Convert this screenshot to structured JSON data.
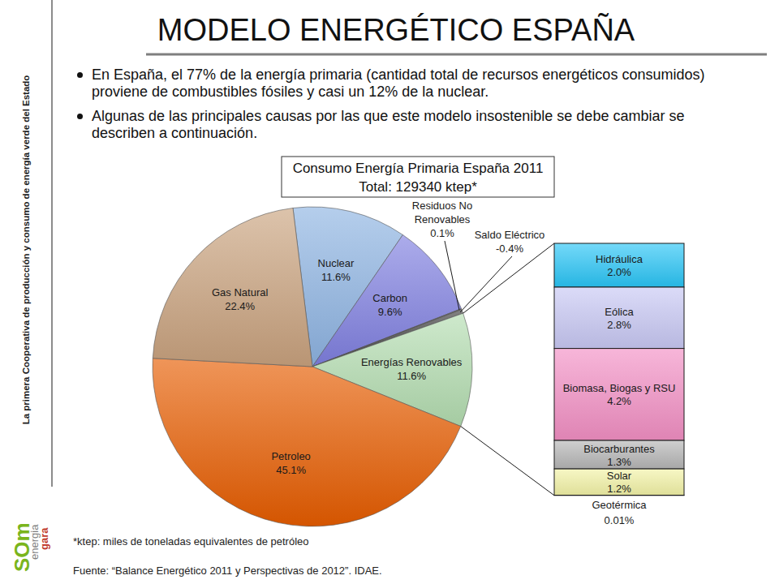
{
  "slide": {
    "title": "MODELO ENERGÉTICO ESPAÑA",
    "bullets": [
      "En España, el 77% de la energía primaria (cantidad total de recursos energéticos consumidos) proviene de combustibles fósiles y casi un 12% de la nuclear.",
      "Algunas de las principales causas por las que este modelo insostenible se debe cambiar se describen a continuación."
    ],
    "footnote": "*ktep: miles de toneladas equivalentes de petróleo",
    "source": "Fuente: “Balance Energético 2011 y Perspectivas de 2012”. IDAE.",
    "sidebar": "La primera Cooperativa de producción y consumo de energía verde del Estado",
    "logo": [
      "SOm",
      "energia",
      "gara"
    ]
  },
  "chart_data": [
    {
      "type": "pie",
      "title": "Consumo Energía Primaria España 2011",
      "subtitle": "Total: 129340 ktep*",
      "categories": [
        "Nuclear",
        "Carbon",
        "Residuos No Renovables",
        "Saldo Eléctrico",
        "Energías Renovables",
        "Petroleo",
        "Gas Natural"
      ],
      "values": [
        11.6,
        9.6,
        0.1,
        -0.4,
        11.6,
        45.1,
        22.4
      ],
      "value_labels": [
        "11.6%",
        "9.6%",
        "0.1%",
        "-0.4%",
        "11.6%",
        "45.1%",
        "22.4%"
      ],
      "colors": [
        "#8db3e2",
        "#7f7fe0",
        "#1a1a1a",
        "#404040",
        "#b3ddb0",
        "#e65c00",
        "#c9a27e"
      ],
      "data_labels": true
    },
    {
      "type": "bar",
      "stacked": true,
      "tick_labels": false,
      "categories": [
        "Hidráulica",
        "Eólica",
        "Biomasa, Biogas y RSU",
        "Biocarburantes",
        "Solar",
        "Geotérmica"
      ],
      "values": [
        2.0,
        2.8,
        4.2,
        1.3,
        1.2,
        0.01
      ],
      "value_labels": [
        "2.0%",
        "2.8%",
        "4.2%",
        "1.3%",
        "1.2%",
        "0.01%"
      ],
      "colors": [
        "#29c5f6",
        "#c8c8f4",
        "#f28fc4",
        "#b5b5b5",
        "#f2f2a6",
        "#9bbb59"
      ],
      "data_labels": true
    }
  ]
}
